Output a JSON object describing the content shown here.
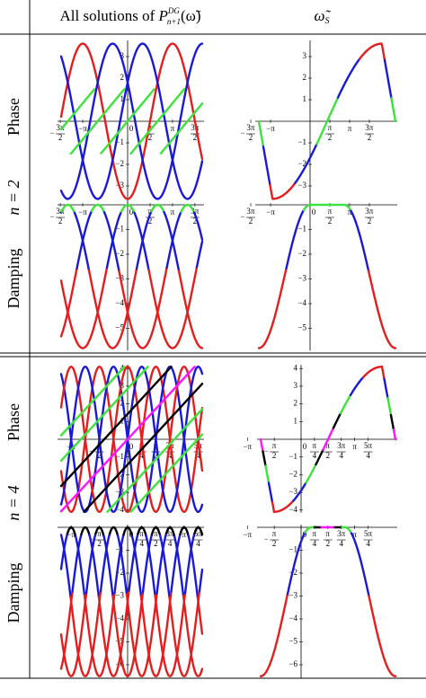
{
  "header": {
    "left": {
      "text": "All solutions of ",
      "symbol": "P",
      "sup": "DG",
      "sub": "n+1",
      "arg": "(ω̃)"
    },
    "right": {
      "symbol": "ω̃",
      "sub": "S"
    }
  },
  "sections": [
    {
      "label": "n = 2",
      "rows": [
        {
          "label": "Phase",
          "plots": [
            {
              "xticks": [
                {
                  "value": -4.712,
                  "label": "−3π/2"
                },
                {
                  "value": -3.1416,
                  "label": "−π"
                },
                0,
                {
                  "value": 1.5708,
                  "label": "π/2"
                },
                {
                  "value": 3.1416,
                  "label": "π"
                },
                {
                  "value": 4.712,
                  "label": "3π/2"
                }
              ],
              "yticks": [
                3,
                2,
                1,
                {
                  "value": -1,
                  "label": "−1"
                },
                {
                  "value": -2,
                  "label": "−2"
                },
                {
                  "value": -3,
                  "label": "−3"
                }
              ]
            },
            {
              "xticks": [
                {
                  "value": -4.712,
                  "label": "−3π/2"
                },
                {
                  "value": -3.1416,
                  "label": "−π"
                },
                {
                  "value": 1.5708,
                  "label": "π/2"
                },
                {
                  "value": 3.1416,
                  "label": "π"
                },
                {
                  "value": 4.712,
                  "label": "3π/2"
                }
              ],
              "yticks": [
                3,
                2,
                1,
                {
                  "value": -1,
                  "label": "−1"
                },
                {
                  "value": -2,
                  "label": "−2"
                },
                {
                  "value": -3,
                  "label": "−3"
                }
              ]
            }
          ]
        },
        {
          "label": "Damping",
          "plots": [
            {
              "xticks": [
                {
                  "value": -4.712,
                  "label": "−3π/2"
                },
                {
                  "value": -3.1416,
                  "label": "−π"
                },
                0,
                {
                  "value": 1.5708,
                  "label": "π/2"
                },
                {
                  "value": 3.1416,
                  "label": "π"
                },
                {
                  "value": 4.712,
                  "label": "3π/2"
                }
              ],
              "yticks": [
                {
                  "value": -1,
                  "label": "−1"
                },
                {
                  "value": -2,
                  "label": "−2"
                },
                {
                  "value": -3,
                  "label": "−3"
                },
                {
                  "value": -4,
                  "label": "−4"
                },
                {
                  "value": -5,
                  "label": "−5"
                }
              ]
            },
            {
              "xticks": [
                {
                  "value": -4.712,
                  "label": "−3π/2"
                },
                {
                  "value": -3.1416,
                  "label": "−π"
                },
                0,
                {
                  "value": 1.5708,
                  "label": "π/2"
                },
                {
                  "value": 3.1416,
                  "label": "π"
                },
                {
                  "value": 4.712,
                  "label": "3π/2"
                }
              ],
              "yticks": [
                {
                  "value": -1,
                  "label": "−1"
                },
                {
                  "value": -2,
                  "label": "−2"
                },
                {
                  "value": -3,
                  "label": "−3"
                },
                {
                  "value": -4,
                  "label": "−4"
                },
                {
                  "value": -5,
                  "label": "−5"
                }
              ]
            }
          ]
        }
      ]
    },
    {
      "label": "n = 4",
      "rows": [
        {
          "label": "Phase",
          "plots": [
            {
              "xticks": [
                {
                  "value": -3.1416,
                  "label": "−π"
                },
                {
                  "value": -1.5708,
                  "label": "−π/2"
                },
                0,
                {
                  "value": 0.7854,
                  "label": "π/4"
                },
                {
                  "value": 1.5708,
                  "label": "π/2"
                },
                {
                  "value": 2.3562,
                  "label": "3π/4"
                },
                {
                  "value": 3.1416,
                  "label": "π"
                },
                {
                  "value": 3.927,
                  "label": "5π/4"
                }
              ],
              "yticks": [
                4,
                3,
                2,
                1,
                {
                  "value": -1,
                  "label": "−1"
                },
                {
                  "value": -2,
                  "label": "−2"
                },
                {
                  "value": -3,
                  "label": "−3"
                },
                {
                  "value": -4,
                  "label": "−4"
                }
              ]
            },
            {
              "xticks": [
                {
                  "value": -3.1416,
                  "label": "−π"
                },
                {
                  "value": -1.5708,
                  "label": "−π/2"
                },
                0,
                {
                  "value": 0.7854,
                  "label": "π/4"
                },
                {
                  "value": 1.5708,
                  "label": "π/2"
                },
                {
                  "value": 2.3562,
                  "label": "3π/4"
                },
                {
                  "value": 3.1416,
                  "label": "π"
                },
                {
                  "value": 3.927,
                  "label": "5π/4"
                }
              ],
              "yticks": [
                4,
                3,
                2,
                1,
                {
                  "value": -1,
                  "label": "−1"
                },
                {
                  "value": -2,
                  "label": "−2"
                },
                {
                  "value": -3,
                  "label": "−3"
                },
                {
                  "value": -4,
                  "label": "−4"
                }
              ]
            }
          ]
        },
        {
          "label": "Damping",
          "plots": [
            {
              "xticks": [
                {
                  "value": -3.1416,
                  "label": "−π"
                },
                {
                  "value": -1.5708,
                  "label": "−π/2"
                },
                0,
                {
                  "value": 0.7854,
                  "label": "π/4"
                },
                {
                  "value": 1.5708,
                  "label": "π/2"
                },
                {
                  "value": 2.3562,
                  "label": "3π/4"
                },
                {
                  "value": 3.1416,
                  "label": "π"
                },
                {
                  "value": 3.927,
                  "label": "5π/4"
                }
              ],
              "yticks": [
                {
                  "value": -1,
                  "label": "−1"
                },
                {
                  "value": -2,
                  "label": "−2"
                },
                {
                  "value": -3,
                  "label": "−3"
                },
                {
                  "value": -4,
                  "label": "−4"
                },
                {
                  "value": -5,
                  "label": "−5"
                },
                {
                  "value": -6,
                  "label": "−6"
                }
              ]
            },
            {
              "xticks": [
                {
                  "value": -3.1416,
                  "label": "−π"
                },
                {
                  "value": -1.5708,
                  "label": "−π/2"
                },
                0,
                {
                  "value": 0.7854,
                  "label": "π/4"
                },
                {
                  "value": 1.5708,
                  "label": "π/2"
                },
                {
                  "value": 2.3562,
                  "label": "3π/4"
                },
                {
                  "value": 3.1416,
                  "label": "π"
                },
                {
                  "value": 3.927,
                  "label": "5π/4"
                }
              ],
              "yticks": [
                {
                  "value": -1,
                  "label": "−1"
                },
                {
                  "value": -2,
                  "label": "−2"
                },
                {
                  "value": -3,
                  "label": "−3"
                },
                {
                  "value": -4,
                  "label": "−4"
                },
                {
                  "value": -5,
                  "label": "−5"
                },
                {
                  "value": -6,
                  "label": "−6"
                }
              ]
            }
          ]
        }
      ]
    }
  ]
}
